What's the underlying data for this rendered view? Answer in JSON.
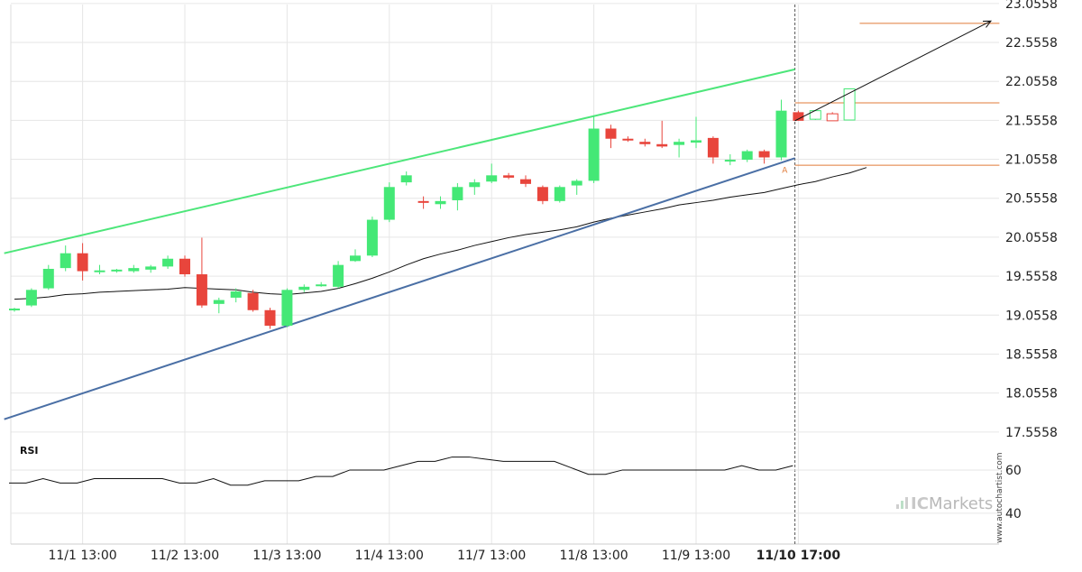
{
  "chart_data": {
    "type": "candlestick",
    "y_ticks": [
      "23.0558",
      "22.5558",
      "22.0558",
      "21.5558",
      "21.0558",
      "20.5558",
      "20.0558",
      "19.5558",
      "19.0558",
      "18.5558",
      "18.0558",
      "17.5558"
    ],
    "y_tick_values": [
      23.0558,
      22.5558,
      22.0558,
      21.5558,
      21.0558,
      20.5558,
      20.0558,
      19.5558,
      19.0558,
      18.5558,
      18.0558,
      17.5558
    ],
    "ylim": [
      17.45,
      23.1
    ],
    "x_labels": [
      "11/1 13:00",
      "11/2 13:00",
      "11/3 13:00",
      "11/4 13:00",
      "11/7 13:00",
      "11/8 13:00",
      "11/9 13:00",
      "11/10 17:00"
    ],
    "x_label_index": [
      4,
      10,
      16,
      22,
      28,
      34,
      40,
      46
    ],
    "highlight_x_label": "11/10 17:00",
    "candles": [
      [
        19.12,
        19.15,
        19.1,
        19.14
      ],
      [
        19.18,
        19.4,
        19.16,
        19.38
      ],
      [
        19.4,
        19.7,
        19.38,
        19.65
      ],
      [
        19.66,
        19.95,
        19.62,
        19.85
      ],
      [
        19.85,
        19.98,
        19.5,
        19.62
      ],
      [
        19.62,
        19.7,
        19.58,
        19.63
      ],
      [
        19.62,
        19.65,
        19.6,
        19.64
      ],
      [
        19.62,
        19.7,
        19.6,
        19.66
      ],
      [
        19.64,
        19.7,
        19.6,
        19.68
      ],
      [
        19.68,
        19.82,
        19.65,
        19.78
      ],
      [
        19.78,
        19.82,
        19.55,
        19.58
      ],
      [
        19.58,
        20.05,
        19.15,
        19.18
      ],
      [
        19.2,
        19.28,
        19.08,
        19.25
      ],
      [
        19.28,
        19.4,
        19.22,
        19.36
      ],
      [
        19.34,
        19.38,
        19.1,
        19.12
      ],
      [
        19.12,
        19.15,
        18.88,
        18.92
      ],
      [
        18.92,
        19.4,
        18.9,
        19.38
      ],
      [
        19.38,
        19.45,
        19.35,
        19.42
      ],
      [
        19.45,
        19.48,
        19.42,
        19.45
      ],
      [
        19.42,
        19.75,
        19.4,
        19.7
      ],
      [
        19.75,
        19.9,
        19.74,
        19.82
      ],
      [
        19.82,
        20.32,
        19.8,
        20.28
      ],
      [
        20.28,
        20.76,
        20.25,
        20.7
      ],
      [
        20.76,
        20.9,
        20.72,
        20.85
      ],
      [
        20.52,
        20.58,
        20.42,
        20.5
      ],
      [
        20.48,
        20.58,
        20.42,
        20.52
      ],
      [
        20.53,
        20.75,
        20.4,
        20.7
      ],
      [
        20.7,
        20.8,
        20.6,
        20.76
      ],
      [
        20.77,
        21.0,
        20.75,
        20.85
      ],
      [
        20.85,
        20.88,
        20.8,
        20.82
      ],
      [
        20.8,
        20.85,
        20.7,
        20.74
      ],
      [
        20.7,
        20.72,
        20.48,
        20.52
      ],
      [
        20.52,
        20.72,
        20.5,
        20.7
      ],
      [
        20.72,
        20.8,
        20.6,
        20.78
      ],
      [
        20.78,
        21.62,
        20.75,
        21.45
      ],
      [
        21.45,
        21.5,
        21.2,
        21.32
      ],
      [
        21.32,
        21.35,
        21.28,
        21.3
      ],
      [
        21.28,
        21.32,
        21.22,
        21.25
      ],
      [
        21.25,
        21.55,
        21.2,
        21.22
      ],
      [
        21.24,
        21.32,
        21.08,
        21.28
      ],
      [
        21.27,
        21.6,
        21.2,
        21.3
      ],
      [
        21.33,
        21.35,
        21.0,
        21.08
      ],
      [
        21.04,
        21.12,
        20.98,
        21.05
      ],
      [
        21.05,
        21.18,
        21.02,
        21.16
      ],
      [
        21.16,
        21.18,
        21.0,
        21.08
      ],
      [
        21.08,
        21.82,
        21.04,
        21.68
      ],
      [
        21.66,
        21.68,
        21.55,
        21.55
      ]
    ],
    "forecast_candles": [
      [
        21.57,
        21.68,
        21.56,
        21.68
      ],
      [
        21.64,
        21.66,
        21.55,
        21.55
      ],
      [
        21.56,
        21.96,
        21.56,
        21.96
      ]
    ],
    "ma": [
      19.26,
      19.27,
      19.29,
      19.32,
      19.33,
      19.35,
      19.36,
      19.37,
      19.38,
      19.39,
      19.41,
      19.4,
      19.39,
      19.38,
      19.35,
      19.33,
      19.32,
      19.34,
      19.36,
      19.4,
      19.46,
      19.53,
      19.61,
      19.7,
      19.78,
      19.84,
      19.89,
      19.95,
      20.0,
      20.05,
      20.09,
      20.12,
      20.15,
      20.19,
      20.25,
      20.3,
      20.34,
      20.38,
      20.42,
      20.47,
      20.5,
      20.53,
      20.57,
      20.6,
      20.63,
      20.68,
      20.73,
      20.77,
      20.83,
      20.88,
      20.95
    ],
    "resistance_line": {
      "x": [
        -0.6,
        45.8
      ],
      "y": [
        19.85,
        22.21
      ]
    },
    "support_line": {
      "x": [
        -0.6,
        45.8
      ],
      "y": [
        17.72,
        21.07
      ]
    },
    "forecast_arrow": {
      "x": [
        45.8,
        57.3
      ],
      "y": [
        21.55,
        22.83
      ]
    },
    "levels": [
      {
        "y": 22.8,
        "x0": 49.6,
        "x1": 57.8
      },
      {
        "y": 21.78,
        "x0": 45.8,
        "x1": 57.8
      },
      {
        "y": 20.98,
        "x0": 45.8,
        "x1": 57.8
      }
    ],
    "current_marker_index": 45.8,
    "point_label": "A",
    "point_label_at": {
      "x": 45.2,
      "y": 20.88
    },
    "rsi": {
      "title": "RSI",
      "labels": [
        "60",
        "40"
      ],
      "label_values": [
        60,
        40
      ],
      "ylim": [
        27,
        75
      ],
      "values": [
        54,
        54,
        56,
        54,
        54,
        56,
        56,
        56,
        56,
        56,
        54,
        54,
        56,
        53,
        53,
        55,
        55,
        55,
        57,
        57,
        60,
        60,
        60,
        62,
        64,
        64,
        66,
        66,
        65,
        64,
        64,
        64,
        64,
        61,
        58,
        58,
        60,
        60,
        60,
        60,
        60,
        60,
        60,
        62,
        60,
        60,
        62
      ]
    },
    "colors": {
      "up": "#44e876",
      "down": "#e8453c",
      "resistance": "#4de67a",
      "support": "#4a6fa5",
      "level": "#e07b39",
      "ma": "#111111",
      "grid": "#e6e6e6"
    }
  },
  "branding": {
    "watermark": "www.autochartist.com",
    "logo_ic": "IC",
    "logo_markets": "Markets"
  }
}
